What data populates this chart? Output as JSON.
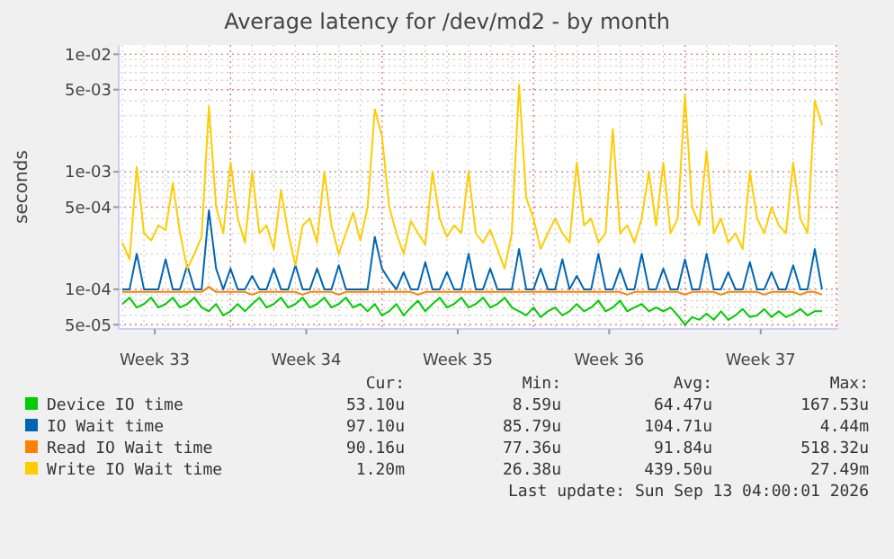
{
  "chart_data": {
    "type": "line",
    "title": "Average latency for /dev/md2 - by month",
    "ylabel": "seconds",
    "log": "y",
    "grid": true,
    "legend": "bottom",
    "line_style": "solid",
    "marker": "none",
    "xlim": [
      "2026-08-11T20:00",
      "2026-09-14T02:00"
    ],
    "xticks": [
      {
        "value": "2026-08-13T12:00",
        "label": "Week 33"
      },
      {
        "value": "2026-08-20T12:00",
        "label": "Week 34"
      },
      {
        "value": "2026-08-27T12:00",
        "label": "Week 35"
      },
      {
        "value": "2026-09-03T12:00",
        "label": "Week 36"
      },
      {
        "value": "2026-09-10T12:00",
        "label": "Week 37"
      }
    ],
    "ylim": [
      4.6e-05,
      0.012
    ],
    "yticks": [
      {
        "value": 0.01,
        "label": "1e-02"
      },
      {
        "value": 0.005,
        "label": "5e-03"
      },
      {
        "value": 0.001,
        "label": "1e-03"
      },
      {
        "value": 0.0005,
        "label": "5e-04"
      },
      {
        "value": 0.0001,
        "label": "1e-04"
      },
      {
        "value": 5e-05,
        "label": "5e-05"
      }
    ],
    "x": [
      "2026-08-12T00:00",
      "2026-08-12T08:00",
      "2026-08-12T16:00",
      "2026-08-13T00:00",
      "2026-08-13T08:00",
      "2026-08-13T16:00",
      "2026-08-14T00:00",
      "2026-08-14T08:00",
      "2026-08-14T16:00",
      "2026-08-15T00:00",
      "2026-08-15T08:00",
      "2026-08-15T16:00",
      "2026-08-16T00:00",
      "2026-08-16T08:00",
      "2026-08-16T16:00",
      "2026-08-17T00:00",
      "2026-08-17T08:00",
      "2026-08-17T16:00",
      "2026-08-18T00:00",
      "2026-08-18T08:00",
      "2026-08-18T16:00",
      "2026-08-19T00:00",
      "2026-08-19T08:00",
      "2026-08-19T16:00",
      "2026-08-20T00:00",
      "2026-08-20T08:00",
      "2026-08-20T16:00",
      "2026-08-21T00:00",
      "2026-08-21T08:00",
      "2026-08-21T16:00",
      "2026-08-22T00:00",
      "2026-08-22T08:00",
      "2026-08-22T16:00",
      "2026-08-23T00:00",
      "2026-08-23T08:00",
      "2026-08-23T16:00",
      "2026-08-24T00:00",
      "2026-08-24T08:00",
      "2026-08-24T16:00",
      "2026-08-25T00:00",
      "2026-08-25T08:00",
      "2026-08-25T16:00",
      "2026-08-26T00:00",
      "2026-08-26T08:00",
      "2026-08-26T16:00",
      "2026-08-27T00:00",
      "2026-08-27T08:00",
      "2026-08-27T16:00",
      "2026-08-28T00:00",
      "2026-08-28T08:00",
      "2026-08-28T16:00",
      "2026-08-29T00:00",
      "2026-08-29T08:00",
      "2026-08-29T16:00",
      "2026-08-30T00:00",
      "2026-08-30T08:00",
      "2026-08-30T16:00",
      "2026-08-31T00:00",
      "2026-08-31T08:00",
      "2026-08-31T16:00",
      "2026-09-01T00:00",
      "2026-09-01T08:00",
      "2026-09-01T16:00",
      "2026-09-02T00:00",
      "2026-09-02T08:00",
      "2026-09-02T16:00",
      "2026-09-03T00:00",
      "2026-09-03T08:00",
      "2026-09-03T16:00",
      "2026-09-04T00:00",
      "2026-09-04T08:00",
      "2026-09-04T16:00",
      "2026-09-05T00:00",
      "2026-09-05T08:00",
      "2026-09-05T16:00",
      "2026-09-06T00:00",
      "2026-09-06T08:00",
      "2026-09-06T16:00",
      "2026-09-07T00:00",
      "2026-09-07T08:00",
      "2026-09-07T16:00",
      "2026-09-08T00:00",
      "2026-09-08T08:00",
      "2026-09-08T16:00",
      "2026-09-09T00:00",
      "2026-09-09T08:00",
      "2026-09-09T16:00",
      "2026-09-10T00:00",
      "2026-09-10T08:00",
      "2026-09-10T16:00",
      "2026-09-11T00:00",
      "2026-09-11T08:00",
      "2026-09-11T16:00",
      "2026-09-12T00:00",
      "2026-09-12T08:00",
      "2026-09-12T16:00",
      "2026-09-13T00:00",
      "2026-09-13T08:00"
    ],
    "series": [
      {
        "name": "Device IO time",
        "color": "#00cc00",
        "values": [
          7.5e-05,
          8.5e-05,
          7e-05,
          7.5e-05,
          8.5e-05,
          7e-05,
          7.5e-05,
          8.5e-05,
          7e-05,
          7.5e-05,
          8.5e-05,
          7e-05,
          6.5e-05,
          7.5e-05,
          6e-05,
          6.5e-05,
          7.5e-05,
          6.5e-05,
          7.5e-05,
          8.5e-05,
          7e-05,
          7.5e-05,
          8.5e-05,
          7e-05,
          7.5e-05,
          8.5e-05,
          7e-05,
          7.5e-05,
          8.5e-05,
          7e-05,
          7.5e-05,
          8.5e-05,
          7e-05,
          7.5e-05,
          6.5e-05,
          7.5e-05,
          6e-05,
          6.5e-05,
          7.5e-05,
          6e-05,
          7e-05,
          8e-05,
          6.5e-05,
          7.5e-05,
          8.5e-05,
          7e-05,
          7.5e-05,
          8.5e-05,
          7e-05,
          7.5e-05,
          8.5e-05,
          7e-05,
          7.5e-05,
          8.5e-05,
          7e-05,
          6.5e-05,
          6e-05,
          7e-05,
          5.8e-05,
          6.5e-05,
          7e-05,
          6e-05,
          6.5e-05,
          7.5e-05,
          6.5e-05,
          7e-05,
          8e-05,
          6.5e-05,
          7e-05,
          8e-05,
          6.5e-05,
          7e-05,
          7.5e-05,
          6.5e-05,
          7e-05,
          6.5e-05,
          7e-05,
          6e-05,
          5e-05,
          5.8e-05,
          5.5e-05,
          6.2e-05,
          5.5e-05,
          6.5e-05,
          5.5e-05,
          6e-05,
          6.8e-05,
          5.8e-05,
          6e-05,
          6.8e-05,
          5.8e-05,
          6.5e-05,
          5.8e-05,
          6.2e-05,
          6.8e-05,
          6e-05,
          6.5e-05,
          6.5e-05
        ]
      },
      {
        "name": "IO Wait time",
        "color": "#0066b3",
        "values": [
          0.0001,
          0.0001,
          0.0002,
          0.0001,
          0.0001,
          0.0001,
          0.00018,
          0.0001,
          0.0001,
          0.00016,
          0.0001,
          0.0001,
          0.00047,
          0.00015,
          0.0001,
          0.00015,
          0.0001,
          0.0001,
          0.00013,
          0.0001,
          0.0001,
          0.00015,
          0.0001,
          0.0001,
          0.00016,
          0.0001,
          0.0001,
          0.00015,
          0.0001,
          0.0001,
          0.00016,
          0.0001,
          0.0001,
          0.0001,
          0.0001,
          0.00028,
          0.00015,
          0.00012,
          0.0001,
          0.00014,
          0.0001,
          0.0001,
          0.00017,
          0.0001,
          0.0001,
          0.00014,
          0.0001,
          0.0001,
          0.0002,
          0.0001,
          0.0001,
          0.00015,
          0.0001,
          0.0001,
          0.0001,
          0.00022,
          0.0001,
          0.0001,
          0.00015,
          0.0001,
          0.0001,
          0.00018,
          0.0001,
          0.00013,
          0.0001,
          0.0001,
          0.0002,
          0.0001,
          0.0001,
          0.00015,
          0.0001,
          0.0001,
          0.0002,
          0.0001,
          0.0001,
          0.00015,
          0.0001,
          0.0001,
          0.00018,
          0.0001,
          0.0001,
          0.0002,
          0.0001,
          0.0001,
          0.00014,
          0.0001,
          0.0001,
          0.00017,
          0.0001,
          0.0001,
          0.00014,
          0.0001,
          0.0001,
          0.00016,
          0.0001,
          0.0001,
          0.00022,
          0.0001
        ]
      },
      {
        "name": "Read IO Wait time",
        "color": "#ff8000",
        "values": [
          9.5e-05,
          9.5e-05,
          9.5e-05,
          9.5e-05,
          9.5e-05,
          9.5e-05,
          9.5e-05,
          9.5e-05,
          9.5e-05,
          9.5e-05,
          9.5e-05,
          9.5e-05,
          0.000105,
          9.5e-05,
          9.5e-05,
          9.5e-05,
          9.5e-05,
          9.5e-05,
          9e-05,
          9.5e-05,
          9.5e-05,
          9.5e-05,
          9.5e-05,
          9.5e-05,
          9.5e-05,
          9e-05,
          9.5e-05,
          9.5e-05,
          9.5e-05,
          9.5e-05,
          9e-05,
          9.5e-05,
          9.5e-05,
          9.5e-05,
          9.5e-05,
          9.5e-05,
          9.5e-05,
          9.5e-05,
          9.5e-05,
          9.5e-05,
          9.5e-05,
          9e-05,
          9.5e-05,
          9.5e-05,
          9.5e-05,
          9.5e-05,
          9.5e-05,
          9.5e-05,
          9.5e-05,
          9.5e-05,
          9.5e-05,
          9.5e-05,
          9.5e-05,
          9.5e-05,
          9.5e-05,
          9.5e-05,
          9.5e-05,
          9.5e-05,
          9.5e-05,
          9.5e-05,
          9.5e-05,
          9.5e-05,
          9.5e-05,
          9.5e-05,
          9.5e-05,
          9.5e-05,
          9.5e-05,
          9.5e-05,
          9.5e-05,
          9.5e-05,
          9e-05,
          9.5e-05,
          9.5e-05,
          9.5e-05,
          9.5e-05,
          9.5e-05,
          9.5e-05,
          9.5e-05,
          9e-05,
          9.5e-05,
          9.5e-05,
          9.5e-05,
          9.5e-05,
          9e-05,
          9.5e-05,
          9.5e-05,
          9.5e-05,
          9.5e-05,
          9.5e-05,
          9e-05,
          9.5e-05,
          9.5e-05,
          9.5e-05,
          9.5e-05,
          9e-05,
          9.5e-05,
          9.5e-05,
          9e-05
        ]
      },
      {
        "name": "Write IO Wait time",
        "color": "#ffcc00",
        "values": [
          0.00025,
          0.00018,
          0.0011,
          0.0003,
          0.00026,
          0.00035,
          0.00032,
          0.0008,
          0.0003,
          0.00015,
          0.0002,
          0.00028,
          0.0036,
          0.0005,
          0.0003,
          0.0012,
          0.0004,
          0.00025,
          0.001,
          0.0003,
          0.00035,
          0.00022,
          0.0007,
          0.0003,
          0.00016,
          0.00035,
          0.0004,
          0.00025,
          0.001,
          0.00035,
          0.0002,
          0.0003,
          0.00045,
          0.00026,
          0.0005,
          0.0034,
          0.002,
          0.0005,
          0.0003,
          0.0002,
          0.00038,
          0.0003,
          0.00024,
          0.001,
          0.0004,
          0.00028,
          0.00035,
          0.0003,
          0.001,
          0.0003,
          0.00025,
          0.00032,
          0.00022,
          0.00015,
          0.0003,
          0.0055,
          0.0006,
          0.0004,
          0.00022,
          0.0003,
          0.0004,
          0.0003,
          0.00025,
          0.0012,
          0.00035,
          0.0004,
          0.00025,
          0.0003,
          0.0023,
          0.0003,
          0.00035,
          0.00025,
          0.0004,
          0.001,
          0.00035,
          0.0012,
          0.0003,
          0.0004,
          0.0045,
          0.0005,
          0.00035,
          0.0015,
          0.0003,
          0.0004,
          0.00025,
          0.0003,
          0.00022,
          0.001,
          0.0004,
          0.0003,
          0.0005,
          0.00035,
          0.0003,
          0.0012,
          0.0004,
          0.0003,
          0.004,
          0.0025
        ]
      }
    ],
    "annotations": [
      "Cur:",
      "Min:",
      "Avg:",
      "Max:",
      "53.10u",
      "8.59u",
      "64.47u",
      "167.53u",
      "97.10u",
      "85.79u",
      "104.71u",
      "4.44m",
      "90.16u",
      "77.36u",
      "91.84u",
      "518.32u",
      "1.20m",
      "26.38u",
      "439.50u",
      "27.49m",
      "Last update: Sun Sep 13 04:00:01 2026"
    ]
  }
}
